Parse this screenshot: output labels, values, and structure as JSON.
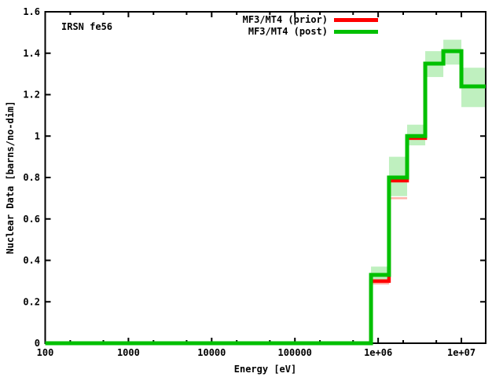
{
  "plot_label": "IRSN fe56",
  "xlabel": "Energy [eV]",
  "ylabel": "Nuclear Data [barns/no-dim]",
  "legend": [
    {
      "label": "MF3/MT4 (prior)",
      "color": "#ff0000"
    },
    {
      "label": "MF3/MT4 (post)",
      "color": "#00c000"
    }
  ],
  "chart_data": {
    "type": "line",
    "subtype": "histogram-steps",
    "x_scale": "log",
    "x_range": [
      100,
      19600000
    ],
    "y_range": [
      0,
      1.6
    ],
    "grid": false,
    "legend_position": "top-center-inside",
    "x_ticks_major": [
      {
        "value": 100,
        "label": "100"
      },
      {
        "value": 1000,
        "label": "1000"
      },
      {
        "value": 10000,
        "label": "10000"
      },
      {
        "value": 100000,
        "label": "100000"
      },
      {
        "value": 1000000,
        "label": "1e+06"
      },
      {
        "value": 10000000,
        "label": "1e+07"
      }
    ],
    "x_ticks_minor": [
      200,
      500,
      2000,
      5000,
      20000,
      50000,
      200000,
      500000,
      2000000,
      5000000
    ],
    "y_ticks": [
      {
        "value": 0,
        "label": "0"
      },
      {
        "value": 0.2,
        "label": "0.2"
      },
      {
        "value": 0.4,
        "label": "0.4"
      },
      {
        "value": 0.6,
        "label": "0.6"
      },
      {
        "value": 0.8,
        "label": "0.8"
      },
      {
        "value": 1,
        "label": "1"
      },
      {
        "value": 1.2,
        "label": "1.2"
      },
      {
        "value": 1.4,
        "label": "1.4"
      },
      {
        "value": 1.6,
        "label": "1.6"
      }
    ],
    "bin_edges_eV": [
      100,
      821000,
      1350000,
      2230000,
      3680000,
      6070000,
      10000000,
      19600000
    ],
    "series": [
      {
        "name": "MF3/MT4 (prior)",
        "color": "#ff0000",
        "values": [
          0,
          0.3,
          0.785,
          0.99,
          1.35,
          1.41,
          1.24
        ]
      },
      {
        "name": "MF3/MT4 (post)",
        "color": "#00c000",
        "values": [
          0,
          0.33,
          0.8,
          1.0,
          1.35,
          1.41,
          1.24
        ]
      }
    ],
    "post_uncertainty_bands": [
      {
        "bin": 1,
        "lo": 0.295,
        "hi": 0.37
      },
      {
        "bin": 2,
        "lo": 0.71,
        "hi": 0.9
      },
      {
        "bin": 3,
        "lo": 0.955,
        "hi": 1.055
      },
      {
        "bin": 4,
        "lo": 1.285,
        "hi": 1.41
      },
      {
        "bin": 5,
        "lo": 1.345,
        "hi": 1.465
      },
      {
        "bin": 6,
        "lo": 1.14,
        "hi": 1.33
      }
    ],
    "prior_band_edges": [
      {
        "bin": 1,
        "value": 0.288
      },
      {
        "bin": 2,
        "value": 0.7
      }
    ],
    "colors": {
      "axis": "#000000",
      "band": "#bff0bf",
      "prior_band_edge": "#ffb2a8",
      "background": "#ffffff"
    }
  }
}
